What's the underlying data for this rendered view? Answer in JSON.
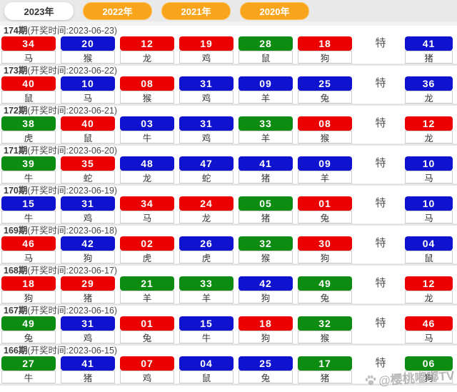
{
  "tabs": [
    {
      "label": "2023年",
      "active": true
    },
    {
      "label": "2022年",
      "active": false
    },
    {
      "label": "2021年",
      "active": false
    },
    {
      "label": "2020年",
      "active": false
    }
  ],
  "labels": {
    "special": "特"
  },
  "colors": {
    "red": "#ec0000",
    "blue": "#0f12cf",
    "green": "#0c8c11",
    "orange": "#f9a51b"
  },
  "watermark": {
    "icon": "paw-icon",
    "text": "@樱桃嘟嘟TV"
  },
  "rows": [
    {
      "period": "174期",
      "time_label": "(开奖时间:2023-06-23)",
      "balls": [
        {
          "num": "34",
          "color": "red",
          "zodiac": "马"
        },
        {
          "num": "20",
          "color": "blue",
          "zodiac": "猴"
        },
        {
          "num": "12",
          "color": "red",
          "zodiac": "龙"
        },
        {
          "num": "19",
          "color": "red",
          "zodiac": "鸡"
        },
        {
          "num": "28",
          "color": "green",
          "zodiac": "鼠"
        },
        {
          "num": "18",
          "color": "red",
          "zodiac": "狗"
        }
      ],
      "special": {
        "num": "41",
        "color": "blue",
        "zodiac": "猪"
      }
    },
    {
      "period": "173期",
      "time_label": "(开奖时间:2023-06-22)",
      "balls": [
        {
          "num": "40",
          "color": "red",
          "zodiac": "鼠"
        },
        {
          "num": "10",
          "color": "blue",
          "zodiac": "马"
        },
        {
          "num": "08",
          "color": "red",
          "zodiac": "猴"
        },
        {
          "num": "31",
          "color": "blue",
          "zodiac": "鸡"
        },
        {
          "num": "09",
          "color": "blue",
          "zodiac": "羊"
        },
        {
          "num": "25",
          "color": "blue",
          "zodiac": "兔"
        }
      ],
      "special": {
        "num": "36",
        "color": "blue",
        "zodiac": "龙"
      }
    },
    {
      "period": "172期",
      "time_label": "(开奖时间:2023-06-21)",
      "balls": [
        {
          "num": "38",
          "color": "green",
          "zodiac": "虎"
        },
        {
          "num": "40",
          "color": "red",
          "zodiac": "鼠"
        },
        {
          "num": "03",
          "color": "blue",
          "zodiac": "牛"
        },
        {
          "num": "31",
          "color": "blue",
          "zodiac": "鸡"
        },
        {
          "num": "33",
          "color": "green",
          "zodiac": "羊"
        },
        {
          "num": "08",
          "color": "red",
          "zodiac": "猴"
        }
      ],
      "special": {
        "num": "12",
        "color": "red",
        "zodiac": "龙"
      }
    },
    {
      "period": "171期",
      "time_label": "(开奖时间:2023-06-20)",
      "balls": [
        {
          "num": "39",
          "color": "green",
          "zodiac": "牛"
        },
        {
          "num": "35",
          "color": "red",
          "zodiac": "蛇"
        },
        {
          "num": "48",
          "color": "blue",
          "zodiac": "龙"
        },
        {
          "num": "47",
          "color": "blue",
          "zodiac": "蛇"
        },
        {
          "num": "41",
          "color": "blue",
          "zodiac": "猪"
        },
        {
          "num": "09",
          "color": "blue",
          "zodiac": "羊"
        }
      ],
      "special": {
        "num": "10",
        "color": "blue",
        "zodiac": "马"
      }
    },
    {
      "period": "170期",
      "time_label": "(开奖时间:2023-06-19)",
      "balls": [
        {
          "num": "15",
          "color": "blue",
          "zodiac": "牛"
        },
        {
          "num": "31",
          "color": "blue",
          "zodiac": "鸡"
        },
        {
          "num": "34",
          "color": "red",
          "zodiac": "马"
        },
        {
          "num": "24",
          "color": "red",
          "zodiac": "龙"
        },
        {
          "num": "05",
          "color": "green",
          "zodiac": "猪"
        },
        {
          "num": "01",
          "color": "red",
          "zodiac": "兔"
        }
      ],
      "special": {
        "num": "10",
        "color": "blue",
        "zodiac": "马"
      }
    },
    {
      "period": "169期",
      "time_label": "(开奖时间:2023-06-18)",
      "balls": [
        {
          "num": "46",
          "color": "red",
          "zodiac": "马"
        },
        {
          "num": "42",
          "color": "blue",
          "zodiac": "狗"
        },
        {
          "num": "02",
          "color": "red",
          "zodiac": "虎"
        },
        {
          "num": "26",
          "color": "blue",
          "zodiac": "虎"
        },
        {
          "num": "32",
          "color": "green",
          "zodiac": "猴"
        },
        {
          "num": "30",
          "color": "red",
          "zodiac": "狗"
        }
      ],
      "special": {
        "num": "04",
        "color": "blue",
        "zodiac": "鼠"
      }
    },
    {
      "period": "168期",
      "time_label": "(开奖时间:2023-06-17)",
      "balls": [
        {
          "num": "18",
          "color": "red",
          "zodiac": "狗"
        },
        {
          "num": "29",
          "color": "red",
          "zodiac": "猪"
        },
        {
          "num": "21",
          "color": "green",
          "zodiac": "羊"
        },
        {
          "num": "33",
          "color": "green",
          "zodiac": "羊"
        },
        {
          "num": "42",
          "color": "blue",
          "zodiac": "狗"
        },
        {
          "num": "49",
          "color": "green",
          "zodiac": "兔"
        }
      ],
      "special": {
        "num": "12",
        "color": "red",
        "zodiac": "龙"
      }
    },
    {
      "period": "167期",
      "time_label": "(开奖时间:2023-06-16)",
      "balls": [
        {
          "num": "49",
          "color": "green",
          "zodiac": "兔"
        },
        {
          "num": "31",
          "color": "blue",
          "zodiac": "鸡"
        },
        {
          "num": "01",
          "color": "red",
          "zodiac": "兔"
        },
        {
          "num": "15",
          "color": "blue",
          "zodiac": "牛"
        },
        {
          "num": "18",
          "color": "red",
          "zodiac": "狗"
        },
        {
          "num": "32",
          "color": "green",
          "zodiac": "猴"
        }
      ],
      "special": {
        "num": "46",
        "color": "red",
        "zodiac": "马"
      }
    },
    {
      "period": "166期",
      "time_label": "(开奖时间:2023-06-15)",
      "balls": [
        {
          "num": "27",
          "color": "green",
          "zodiac": "牛"
        },
        {
          "num": "41",
          "color": "blue",
          "zodiac": "猪"
        },
        {
          "num": "07",
          "color": "red",
          "zodiac": "鸡"
        },
        {
          "num": "04",
          "color": "blue",
          "zodiac": "鼠"
        },
        {
          "num": "25",
          "color": "blue",
          "zodiac": "兔"
        },
        {
          "num": "17",
          "color": "green",
          "zodiac": "猪"
        }
      ],
      "special": {
        "num": "06",
        "color": "green",
        "zodiac": "狗"
      }
    }
  ]
}
